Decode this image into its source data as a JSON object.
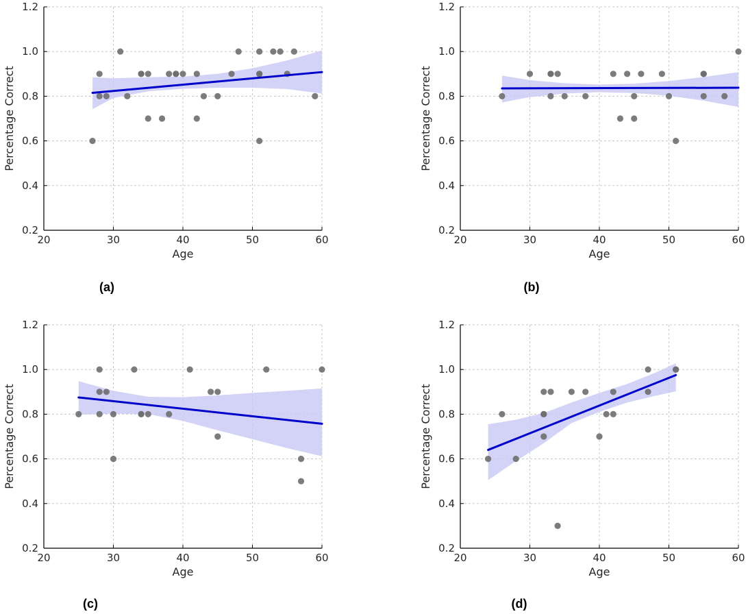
{
  "colors": {
    "points": "#6e6e6e",
    "line": "#0000cc",
    "band": "#c8c8f5",
    "grid": "#c8c8c8",
    "axis": "#000000"
  },
  "chart_data": [
    {
      "type": "scatter",
      "panel_label": "(a)",
      "xlabel": "Age",
      "ylabel": "Percentage Correct",
      "xlim": [
        20,
        60
      ],
      "ylim": [
        0.2,
        1.2
      ],
      "xticks": [
        20,
        30,
        40,
        50,
        60
      ],
      "yticks": [
        0.2,
        0.4,
        0.6,
        0.8,
        1.0,
        1.2
      ],
      "grid": true,
      "points": [
        [
          27,
          0.6
        ],
        [
          28,
          0.8
        ],
        [
          28,
          0.9
        ],
        [
          29,
          0.8
        ],
        [
          31,
          1.0
        ],
        [
          32,
          0.8
        ],
        [
          34,
          0.9
        ],
        [
          34,
          0.9
        ],
        [
          35,
          0.9
        ],
        [
          35,
          0.7
        ],
        [
          37,
          0.7
        ],
        [
          38,
          0.9
        ],
        [
          39,
          0.9
        ],
        [
          39,
          0.9
        ],
        [
          40,
          0.9
        ],
        [
          42,
          0.9
        ],
        [
          42,
          0.7
        ],
        [
          43,
          0.8
        ],
        [
          45,
          0.8
        ],
        [
          47,
          0.9
        ],
        [
          48,
          1.0
        ],
        [
          51,
          1.0
        ],
        [
          51,
          0.9
        ],
        [
          51,
          0.9
        ],
        [
          51,
          0.6
        ],
        [
          53,
          1.0
        ],
        [
          54,
          1.0
        ],
        [
          55,
          0.9
        ],
        [
          56,
          1.0
        ],
        [
          59,
          0.8
        ]
      ],
      "fit": {
        "x": [
          27,
          60
        ],
        "y": [
          0.815,
          0.908
        ]
      },
      "ci_band": [
        [
          27,
          0.885,
          0.742
        ],
        [
          30,
          0.88,
          0.792
        ],
        [
          35,
          0.885,
          0.822
        ],
        [
          40,
          0.888,
          0.833
        ],
        [
          45,
          0.9,
          0.838
        ],
        [
          50,
          0.925,
          0.838
        ],
        [
          55,
          0.96,
          0.832
        ],
        [
          60,
          1.005,
          0.812
        ]
      ]
    },
    {
      "type": "scatter",
      "panel_label": "(b)",
      "xlabel": "Age",
      "ylabel": "Percentage Correct",
      "xlim": [
        20,
        60
      ],
      "ylim": [
        0.2,
        1.2
      ],
      "xticks": [
        20,
        30,
        40,
        50,
        60
      ],
      "yticks": [
        0.2,
        0.4,
        0.6,
        0.8,
        1.0,
        1.2
      ],
      "grid": true,
      "points": [
        [
          26,
          0.8
        ],
        [
          30,
          0.9
        ],
        [
          33,
          0.9
        ],
        [
          33,
          0.9
        ],
        [
          33,
          0.8
        ],
        [
          34,
          0.9
        ],
        [
          35,
          0.8
        ],
        [
          38,
          0.8
        ],
        [
          42,
          0.9
        ],
        [
          43,
          0.7
        ],
        [
          44,
          0.9
        ],
        [
          45,
          0.8
        ],
        [
          45,
          0.7
        ],
        [
          46,
          0.9
        ],
        [
          49,
          0.9
        ],
        [
          50,
          0.8
        ],
        [
          51,
          0.6
        ],
        [
          55,
          0.9
        ],
        [
          55,
          0.9
        ],
        [
          55,
          0.8
        ],
        [
          58,
          0.8
        ],
        [
          60,
          1.0
        ]
      ],
      "fit": {
        "x": [
          26,
          60
        ],
        "y": [
          0.835,
          0.838
        ]
      },
      "ci_band": [
        [
          26,
          0.892,
          0.772
        ],
        [
          30,
          0.872,
          0.796
        ],
        [
          35,
          0.858,
          0.812
        ],
        [
          40,
          0.852,
          0.818
        ],
        [
          45,
          0.856,
          0.814
        ],
        [
          50,
          0.868,
          0.802
        ],
        [
          55,
          0.886,
          0.78
        ],
        [
          60,
          0.908,
          0.752
        ]
      ]
    },
    {
      "type": "scatter",
      "panel_label": "(c)",
      "xlabel": "Age",
      "ylabel": "Percentage Correct",
      "xlim": [
        20,
        60
      ],
      "ylim": [
        0.2,
        1.2
      ],
      "xticks": [
        20,
        30,
        40,
        50,
        60
      ],
      "yticks": [
        0.2,
        0.4,
        0.6,
        0.8,
        1.0,
        1.2
      ],
      "grid": true,
      "points": [
        [
          25,
          0.8
        ],
        [
          28,
          1.0
        ],
        [
          28,
          0.9
        ],
        [
          28,
          0.8
        ],
        [
          29,
          0.9
        ],
        [
          30,
          0.8
        ],
        [
          30,
          0.6
        ],
        [
          33,
          1.0
        ],
        [
          34,
          0.8
        ],
        [
          34,
          0.8
        ],
        [
          35,
          0.8
        ],
        [
          38,
          0.8
        ],
        [
          41,
          1.0
        ],
        [
          44,
          0.9
        ],
        [
          45,
          0.9
        ],
        [
          45,
          0.7
        ],
        [
          52,
          1.0
        ],
        [
          57,
          0.6
        ],
        [
          57,
          0.5
        ],
        [
          60,
          1.0
        ]
      ],
      "fit": {
        "x": [
          25,
          60
        ],
        "y": [
          0.875,
          0.757
        ]
      },
      "ci_band": [
        [
          25,
          0.948,
          0.798
        ],
        [
          30,
          0.905,
          0.802
        ],
        [
          35,
          0.878,
          0.8
        ],
        [
          40,
          0.876,
          0.77
        ],
        [
          45,
          0.884,
          0.728
        ],
        [
          50,
          0.895,
          0.688
        ],
        [
          55,
          0.905,
          0.648
        ],
        [
          60,
          0.915,
          0.612
        ]
      ]
    },
    {
      "type": "scatter",
      "panel_label": "(d)",
      "xlabel": "Age",
      "ylabel": "Percentage Correct",
      "xlim": [
        20,
        60
      ],
      "ylim": [
        0.2,
        1.2
      ],
      "xticks": [
        20,
        30,
        40,
        50,
        60
      ],
      "yticks": [
        0.2,
        0.4,
        0.6,
        0.8,
        1.0,
        1.2
      ],
      "grid": true,
      "points": [
        [
          24,
          0.6
        ],
        [
          26,
          0.8
        ],
        [
          28,
          0.6
        ],
        [
          32,
          0.9
        ],
        [
          32,
          0.8
        ],
        [
          32,
          0.8
        ],
        [
          32,
          0.7
        ],
        [
          33,
          0.9
        ],
        [
          34,
          0.3
        ],
        [
          36,
          0.9
        ],
        [
          38,
          0.9
        ],
        [
          40,
          0.7
        ],
        [
          41,
          0.8
        ],
        [
          42,
          0.8
        ],
        [
          42,
          0.9
        ],
        [
          47,
          1.0
        ],
        [
          47,
          0.9
        ],
        [
          51,
          1.0
        ],
        [
          51,
          1.0
        ]
      ],
      "fit": {
        "x": [
          24,
          51
        ],
        "y": [
          0.64,
          0.975
        ]
      },
      "ci_band": [
        [
          24,
          0.755,
          0.505
        ],
        [
          28,
          0.775,
          0.59
        ],
        [
          32,
          0.805,
          0.67
        ],
        [
          36,
          0.852,
          0.76
        ],
        [
          40,
          0.895,
          0.81
        ],
        [
          44,
          0.935,
          0.852
        ],
        [
          48,
          0.985,
          0.882
        ],
        [
          51,
          1.028,
          0.902
        ]
      ]
    }
  ]
}
